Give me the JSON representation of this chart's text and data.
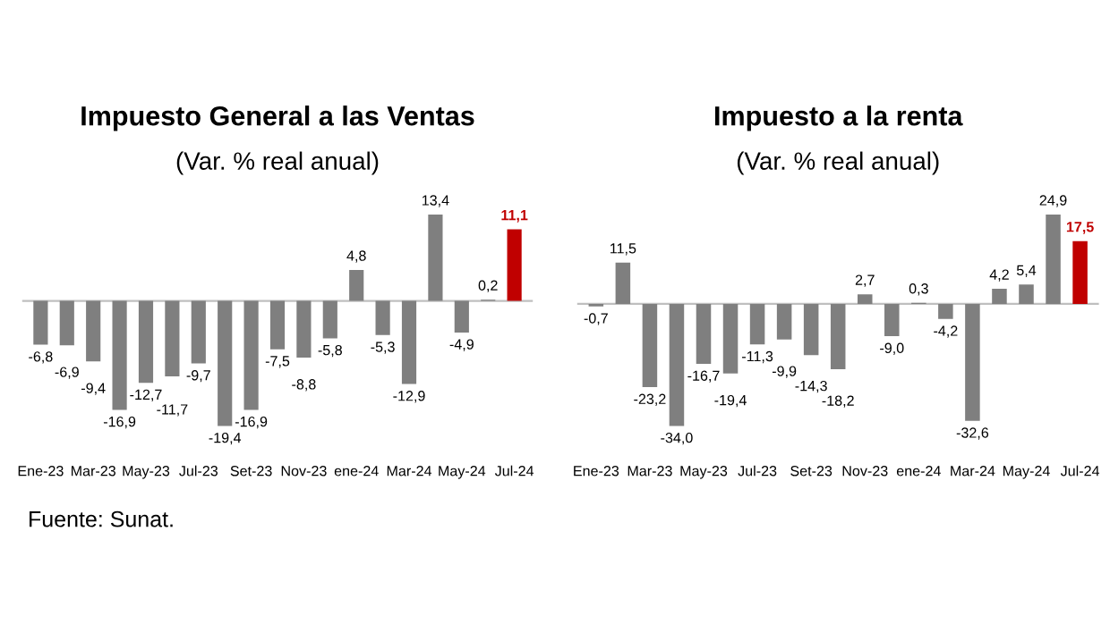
{
  "chart_data": [
    {
      "type": "bar",
      "title": "Impuesto General a las Ventas",
      "subtitle": "(Var. % real anual)",
      "categories": [
        "Ene-23",
        null,
        "Mar-23",
        null,
        "May-23",
        null,
        "Jul-23",
        null,
        "Set-23",
        null,
        "Nov-23",
        null,
        "ene-24",
        null,
        "Mar-24",
        null,
        "May-24",
        null,
        "Jul-24"
      ],
      "values": [
        -6.8,
        -6.9,
        -9.4,
        -16.9,
        -12.7,
        -11.7,
        -9.7,
        -19.4,
        -16.9,
        -7.5,
        -8.8,
        -5.8,
        4.8,
        -5.3,
        -12.9,
        13.4,
        -4.9,
        0.2,
        11.1
      ],
      "value_labels": [
        "-6,8",
        "-6,9",
        "-9,4",
        "-16,9",
        "-12,7",
        "-11,7",
        "-9,7",
        "-19,4",
        "-16,9",
        "-7,5",
        "-8,8",
        "-5,8",
        "4,8",
        "-5,3",
        "-12,9",
        "13,4",
        "-4,9",
        "0,2",
        "11,1"
      ],
      "colors": [
        "#7f7f7f",
        "#7f7f7f",
        "#7f7f7f",
        "#7f7f7f",
        "#7f7f7f",
        "#7f7f7f",
        "#7f7f7f",
        "#7f7f7f",
        "#7f7f7f",
        "#7f7f7f",
        "#7f7f7f",
        "#7f7f7f",
        "#7f7f7f",
        "#7f7f7f",
        "#7f7f7f",
        "#7f7f7f",
        "#7f7f7f",
        "#7f7f7f",
        "#c00000"
      ],
      "grid": false,
      "legend": false,
      "annotations": [
        "Fuente: Sunat."
      ]
    },
    {
      "type": "bar",
      "title": "Impuesto a la renta",
      "subtitle": "(Var. % real anual)",
      "categories": [
        "Ene-23",
        null,
        "Mar-23",
        null,
        "May-23",
        null,
        "Jul-23",
        null,
        "Set-23",
        null,
        "Nov-23",
        null,
        "ene-24",
        null,
        "Mar-24",
        null,
        "May-24",
        null,
        "Jul-24"
      ],
      "values": [
        -0.7,
        11.5,
        -23.2,
        -34.0,
        -16.7,
        -19.4,
        -11.3,
        -9.9,
        -14.3,
        -18.2,
        2.7,
        -9.0,
        0.3,
        -4.2,
        -32.6,
        4.2,
        5.4,
        24.9,
        17.5
      ],
      "value_labels": [
        "-0,7",
        "11,5",
        "-23,2",
        "-34,0",
        "-16,7",
        "-19,4",
        "-11,3",
        "-9,9",
        "-14,3",
        "-18,2",
        "2,7",
        "-9,0",
        "0,3",
        "-4,2",
        "-32,6",
        "4,2",
        "5,4",
        "24,9",
        "17,5"
      ],
      "colors": [
        "#7f7f7f",
        "#7f7f7f",
        "#7f7f7f",
        "#7f7f7f",
        "#7f7f7f",
        "#7f7f7f",
        "#7f7f7f",
        "#7f7f7f",
        "#7f7f7f",
        "#7f7f7f",
        "#7f7f7f",
        "#7f7f7f",
        "#7f7f7f",
        "#7f7f7f",
        "#7f7f7f",
        "#7f7f7f",
        "#7f7f7f",
        "#7f7f7f",
        "#c00000"
      ],
      "grid": false,
      "legend": false
    }
  ]
}
